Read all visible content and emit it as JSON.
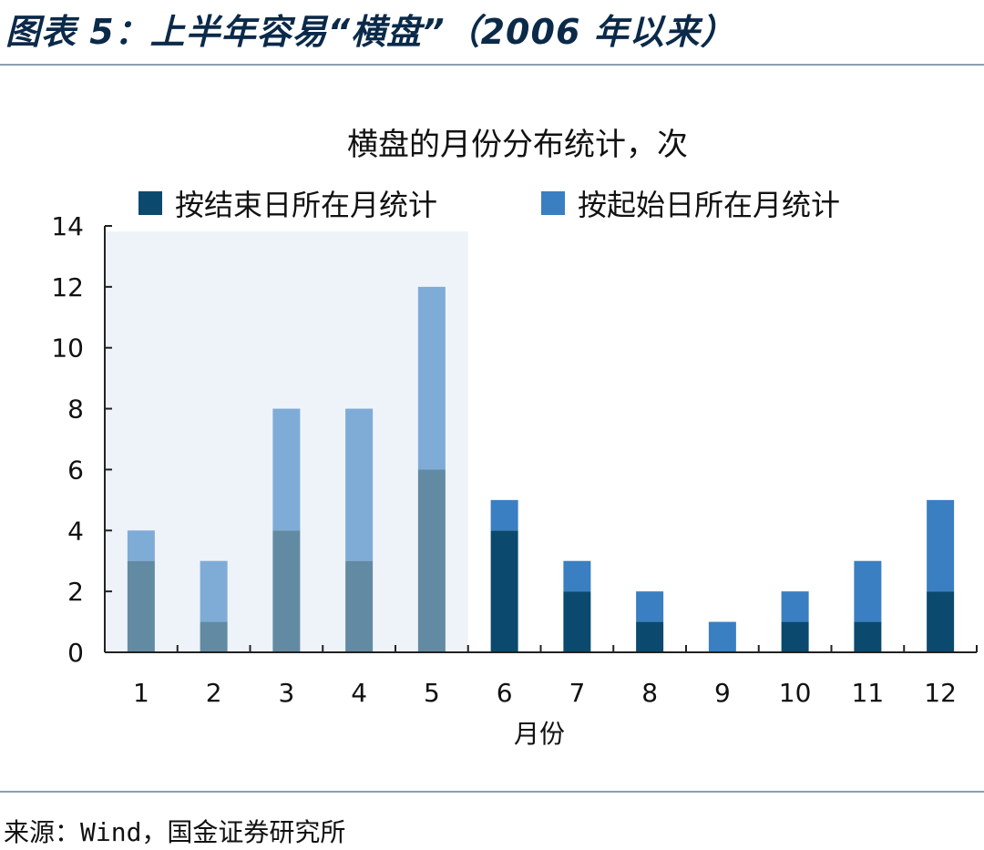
{
  "figure_title": "图表 5：上半年容易“横盘”（2006 年以来）",
  "source": "来源：Wind，国金证券研究所",
  "colors": {
    "end_series": "#0b4a6e",
    "start_series": "#3a7fc1",
    "highlight_bg": "#eef3fa",
    "rule": "#8aa0b4"
  },
  "chart_data": {
    "type": "bar",
    "stacked": true,
    "title": "横盘的月份分布统计，次",
    "xlabel": "月份",
    "ylabel": "",
    "categories": [
      "1",
      "2",
      "3",
      "4",
      "5",
      "6",
      "7",
      "8",
      "9",
      "10",
      "11",
      "12"
    ],
    "series": [
      {
        "name": "按结束日所在月统计",
        "values": [
          3,
          1,
          4,
          3,
          6,
          4,
          2,
          1,
          0,
          1,
          1,
          2
        ]
      },
      {
        "name": "按起始日所在月统计",
        "values": [
          1,
          2,
          4,
          5,
          6,
          1,
          1,
          1,
          1,
          1,
          2,
          3
        ]
      }
    ],
    "ylim": [
      0,
      14
    ],
    "yticks": [
      0,
      2,
      4,
      6,
      8,
      10,
      12,
      14
    ],
    "highlight_categories": [
      "1",
      "2",
      "3",
      "4",
      "5"
    ],
    "grid": false,
    "legend_position": "top"
  }
}
